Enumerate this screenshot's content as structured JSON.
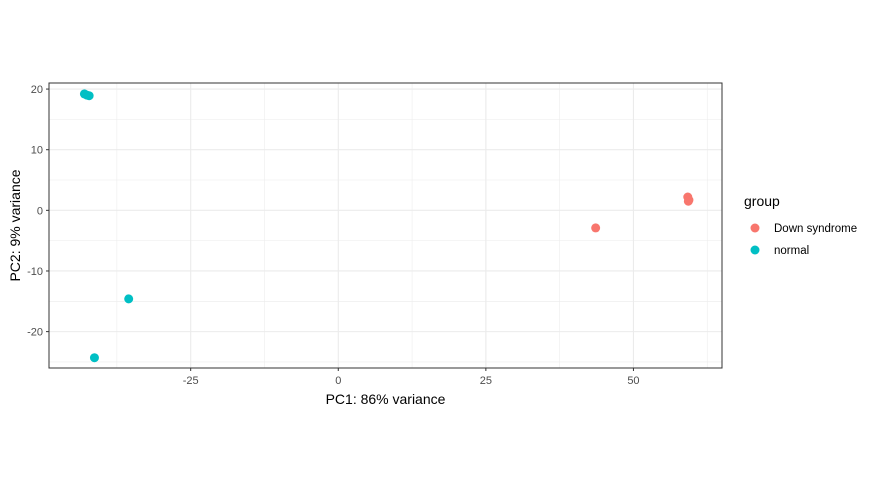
{
  "chart_data": {
    "type": "scatter",
    "xlabel": "PC1: 86% variance",
    "ylabel": "PC2: 9% variance",
    "xlim": [
      -49,
      65
    ],
    "ylim": [
      -26,
      21
    ],
    "x_ticks": [
      -25,
      0,
      25,
      50
    ],
    "x_tick_labels": [
      "-25",
      "0",
      "25",
      "50"
    ],
    "y_ticks": [
      -20,
      -10,
      0,
      10,
      20
    ],
    "y_tick_labels": [
      "-20",
      "-10",
      "0",
      "10",
      "20"
    ],
    "grid": true,
    "legend": {
      "title": "group",
      "placement": "right"
    },
    "series": [
      {
        "name": "Down syndrome",
        "color": "#F8766D",
        "points": [
          {
            "x": 43.6,
            "y": -2.9
          },
          {
            "x": 59.2,
            "y": 2.2
          },
          {
            "x": 59.4,
            "y": 1.7
          },
          {
            "x": 59.3,
            "y": 1.5
          }
        ]
      },
      {
        "name": "normal",
        "color": "#00BFC4",
        "points": [
          {
            "x": -43.0,
            "y": 19.2
          },
          {
            "x": -42.6,
            "y": 19.0
          },
          {
            "x": -42.2,
            "y": 18.9
          },
          {
            "x": -35.5,
            "y": -14.6
          },
          {
            "x": -41.3,
            "y": -24.3
          }
        ]
      }
    ]
  }
}
